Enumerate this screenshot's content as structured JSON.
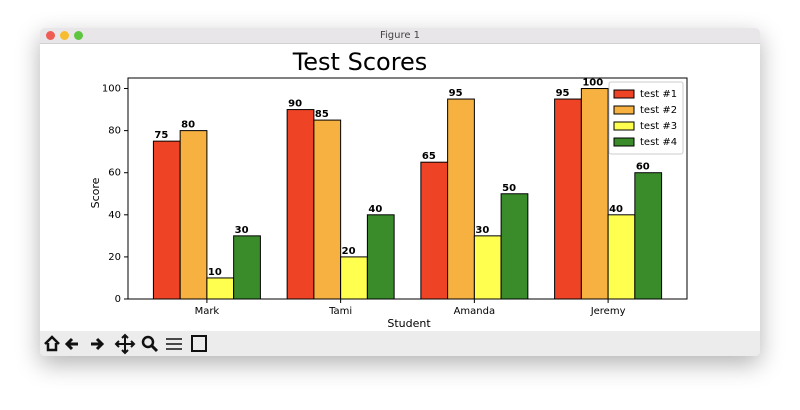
{
  "window": {
    "title": "Figure 1"
  },
  "chart_data": {
    "type": "bar",
    "title": "Test Scores",
    "xlabel": "Student",
    "ylabel": "Score",
    "categories": [
      "Mark",
      "Tami",
      "Amanda",
      "Jeremy"
    ],
    "series": [
      {
        "name": "test #1",
        "color": "#ee4324",
        "values": [
          75,
          90,
          65,
          95
        ]
      },
      {
        "name": "test #2",
        "color": "#f6b141",
        "values": [
          80,
          85,
          95,
          100
        ]
      },
      {
        "name": "test #3",
        "color": "#ffff4f",
        "values": [
          10,
          20,
          30,
          40
        ]
      },
      {
        "name": "test #4",
        "color": "#3a8c2a",
        "values": [
          30,
          40,
          50,
          60
        ]
      }
    ],
    "ylim": [
      0,
      105
    ],
    "yticks": [
      0,
      20,
      40,
      60,
      80,
      100
    ],
    "legend": "upper right"
  }
}
